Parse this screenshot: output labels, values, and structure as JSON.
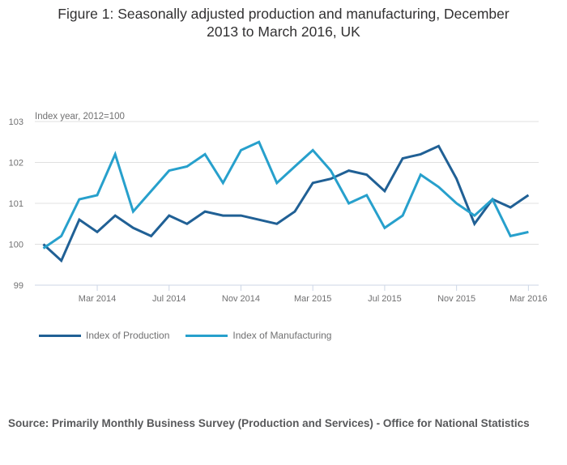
{
  "title_lines": [
    "Figure 1: Seasonally adjusted production and manufacturing, December",
    "2013 to March 2016, UK"
  ],
  "source": "Source: Primarily Monthly Business Survey (Production and Services) - Office for National Statistics",
  "colors": {
    "production": "#206095",
    "manufacturing": "#27a0cc",
    "grid": "#e0e0e0",
    "axis": "#ccd6e6"
  },
  "chart_data": {
    "type": "line",
    "title": "Figure 1: Seasonally adjusted production and manufacturing, December 2013 to March 2016, UK",
    "ylabel": "Index year, 2012=100",
    "xlabel": "",
    "ylim": [
      99,
      103
    ],
    "yticks": [
      99,
      100,
      101,
      102,
      103
    ],
    "grid": true,
    "legend_position": "bottom-left",
    "x": [
      "Dec 2013",
      "Jan 2014",
      "Feb 2014",
      "Mar 2014",
      "Apr 2014",
      "May 2014",
      "Jun 2014",
      "Jul 2014",
      "Aug 2014",
      "Sep 2014",
      "Oct 2014",
      "Nov 2014",
      "Dec 2014",
      "Jan 2015",
      "Feb 2015",
      "Mar 2015",
      "Apr 2015",
      "May 2015",
      "Jun 2015",
      "Jul 2015",
      "Aug 2015",
      "Sep 2015",
      "Oct 2015",
      "Nov 2015",
      "Dec 2015",
      "Jan 2016",
      "Feb 2016",
      "Mar 2016"
    ],
    "xtick_labels": [
      {
        "index": 3,
        "label": "Mar 2014"
      },
      {
        "index": 7,
        "label": "Jul 2014"
      },
      {
        "index": 11,
        "label": "Nov 2014"
      },
      {
        "index": 15,
        "label": "Mar 2015"
      },
      {
        "index": 19,
        "label": "Jul 2015"
      },
      {
        "index": 23,
        "label": "Nov 2015"
      },
      {
        "index": 27,
        "label": "Mar 2016"
      }
    ],
    "series": [
      {
        "name": "Index of Production",
        "color_key": "production",
        "values": [
          100.0,
          99.6,
          100.6,
          100.3,
          100.7,
          100.4,
          100.2,
          100.7,
          100.5,
          100.8,
          100.7,
          100.7,
          100.6,
          100.5,
          100.8,
          101.5,
          101.6,
          101.8,
          101.7,
          101.3,
          102.1,
          102.2,
          102.4,
          101.6,
          100.5,
          101.1,
          100.9,
          101.2
        ]
      },
      {
        "name": "Index of Manufacturing",
        "color_key": "manufacturing",
        "values": [
          99.9,
          100.2,
          101.1,
          101.2,
          102.2,
          100.8,
          101.3,
          101.8,
          101.9,
          102.2,
          101.5,
          102.3,
          102.5,
          101.5,
          101.9,
          102.3,
          101.8,
          101.0,
          101.2,
          100.4,
          100.7,
          101.7,
          101.4,
          101.0,
          100.7,
          101.1,
          100.2,
          100.3
        ]
      }
    ]
  }
}
